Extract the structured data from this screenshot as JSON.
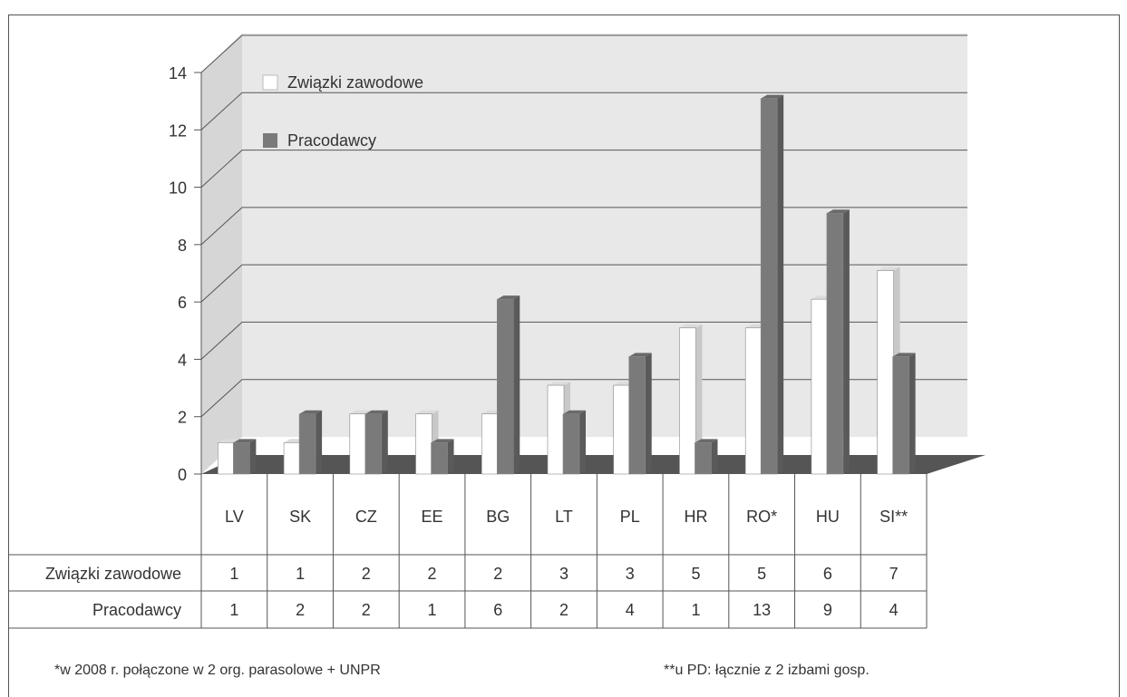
{
  "colors": {
    "wall": "#e8e8e8",
    "floor": "#555555",
    "gridline": "#555555",
    "series_zwiazki": "#ffffff",
    "series_zwiazki_side": "#c8c8c8",
    "series_pracodawcy": "#7a7a7a",
    "series_pracodawcy_side": "#5a5a5a"
  },
  "chart_data": {
    "type": "bar",
    "categories": [
      "LV",
      "SK",
      "CZ",
      "EE",
      "BG",
      "LT",
      "PL",
      "HR",
      "RO*",
      "HU",
      "SI**"
    ],
    "series": [
      {
        "name": "Związki zawodowe",
        "values": [
          1,
          1,
          2,
          2,
          2,
          3,
          3,
          5,
          5,
          6,
          7
        ]
      },
      {
        "name": "Pracodawcy",
        "values": [
          1,
          2,
          2,
          1,
          6,
          2,
          4,
          1,
          13,
          9,
          4
        ]
      }
    ],
    "ylim": [
      0,
      14
    ],
    "yticks": [
      0,
      2,
      4,
      6,
      8,
      10,
      12,
      14
    ],
    "legend_position": "top-left",
    "grid": true,
    "style": "3d-column-with-data-table"
  },
  "footnotes": {
    "left": "*w 2008 r. połączone w 2 org. parasolowe + UNPR",
    "right": "**u PD: łącznie z 2 izbami gosp."
  }
}
